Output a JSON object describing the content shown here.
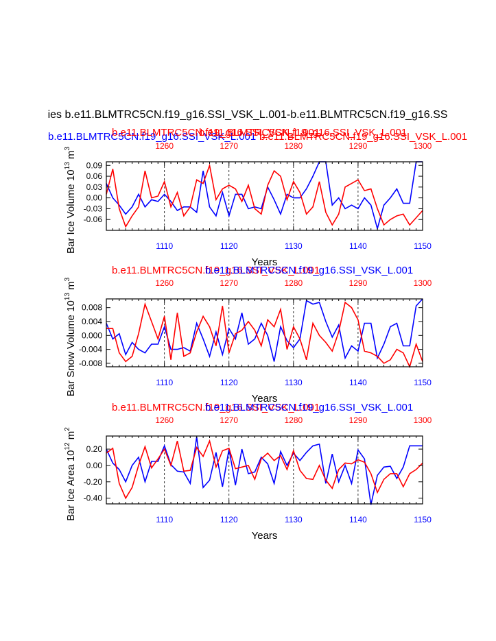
{
  "figure": {
    "main_title": "ies b.e11.BLMTRC5CN.f19_g16.SSI_VSK_L.001-b.e11.BLMTRC5CN.f19_g16.SS",
    "top_line_blue": "b.e11.BLMTRC5CN.f19_g16.SSI_VSK_L.001",
    "top_line_red": "b.e11.BLMTRC5CN.f19_g16.SSI_VSK_L.001",
    "colors": {
      "series_a": "#0000ff",
      "series_b": "#ff0000",
      "text": "#000000"
    }
  },
  "chart_data": [
    {
      "type": "line",
      "title_red": "b.e11.BLMTRC5CN.f19_g16.SSI_VSK_L.001",
      "title_blue": "b.e11.BLMTRC5CN.f19_g16.SSI_VSK_L.001",
      "ylabel": "Bar Ice Volume 10",
      "ylabel_exp": "13",
      "ylabel_unit": "m",
      "ylabel_unit_exp": "3",
      "xlabel": "Years",
      "ylim": [
        -0.09,
        0.1
      ],
      "yticks": [
        -0.06,
        -0.03,
        0.0,
        0.03,
        0.06,
        0.09
      ],
      "yticklabels": [
        "-0.06",
        "-0.03",
        "0.00",
        "0.03",
        "0.06",
        "0.09"
      ],
      "x_bottom": {
        "range": [
          1101,
          1150
        ],
        "ticks": [
          1110,
          1120,
          1130,
          1140,
          1150
        ]
      },
      "x_top": {
        "range": [
          1251,
          1300
        ],
        "ticks": [
          1260,
          1270,
          1280,
          1290,
          1300
        ]
      },
      "series": [
        {
          "name": "b.e11.BLMTRC5CN.f19_g16.SSI_VSK_L.001 (1101-1150)",
          "color": "#0000ff",
          "values": [
            0.04,
            0.0,
            -0.02,
            -0.045,
            -0.025,
            0.01,
            -0.025,
            -0.005,
            -0.01,
            0.01,
            -0.01,
            -0.035,
            -0.025,
            -0.025,
            -0.04,
            0.075,
            -0.025,
            -0.05,
            0.015,
            -0.05,
            0.01,
            0.01,
            -0.03,
            -0.025,
            -0.03,
            0.03,
            -0.005,
            -0.045,
            0.01,
            0.0,
            0.0,
            0.025,
            0.06,
            0.1,
            0.1,
            -0.02,
            0.0,
            -0.03,
            -0.02,
            -0.03,
            0.0,
            -0.02,
            -0.085,
            -0.02,
            0.0,
            0.025,
            -0.015,
            -0.015,
            0.1,
            0.1
          ]
        },
        {
          "name": "b.e11.BLMTRC5CN.f19_g16.SSI_VSK_L.001 (1251-1300)",
          "color": "#ff0000",
          "values": [
            0.01,
            0.08,
            -0.03,
            -0.08,
            -0.05,
            -0.025,
            0.075,
            0.0,
            0.005,
            0.045,
            -0.025,
            0.015,
            -0.05,
            -0.025,
            0.05,
            0.04,
            0.09,
            -0.005,
            0.025,
            0.035,
            0.025,
            -0.01,
            0.035,
            -0.03,
            -0.045,
            0.035,
            0.075,
            0.06,
            -0.005,
            0.045,
            0.015,
            -0.045,
            -0.025,
            0.045,
            -0.04,
            -0.075,
            -0.045,
            0.03,
            0.04,
            0.05,
            0.02,
            0.025,
            -0.03,
            -0.075,
            -0.06,
            -0.05,
            -0.045,
            -0.075,
            -0.055,
            -0.035
          ]
        }
      ]
    },
    {
      "type": "line",
      "title_red": "b.e11.BLMTRC5CN.f19_g16.SSI_VSK_L.001",
      "title_blue": "b.e11.BLMTRC5CN.f19_g16.SSI_VSK_L.001",
      "ylabel": "Bar Snow Volume 10",
      "ylabel_exp": "13",
      "ylabel_unit": "m",
      "ylabel_unit_exp": "3",
      "xlabel": "Years",
      "ylim": [
        -0.009,
        0.0105
      ],
      "yticks": [
        -0.008,
        -0.004,
        0.0,
        0.004,
        0.008
      ],
      "yticklabels": [
        "-0.008",
        "-0.004",
        "0.000",
        "0.004",
        "0.008"
      ],
      "x_bottom": {
        "range": [
          1101,
          1150
        ],
        "ticks": [
          1110,
          1120,
          1130,
          1140,
          1150
        ]
      },
      "x_top": {
        "range": [
          1251,
          1300
        ],
        "ticks": [
          1260,
          1270,
          1280,
          1290,
          1300
        ]
      },
      "series": [
        {
          "name": "b.e11.BLMTRC5CN.f19_g16.SSI_VSK_L.001 (1101-1150)",
          "color": "#0000ff",
          "values": [
            0.0035,
            -0.001,
            0.0005,
            -0.0055,
            -0.002,
            -0.004,
            -0.005,
            -0.0025,
            -0.0025,
            0.0025,
            -0.004,
            -0.004,
            -0.0035,
            -0.0045,
            0.0035,
            -0.001,
            -0.006,
            0.001,
            -0.0055,
            0.002,
            -0.001,
            0.0065,
            -0.0025,
            -0.001,
            0.0035,
            0.0,
            -0.0075,
            0.0025,
            -0.0015,
            -0.0035,
            -0.001,
            0.01,
            0.009,
            0.0095,
            0.004,
            -0.0005,
            0.003,
            -0.0065,
            -0.003,
            -0.0045,
            0.0035,
            0.0035,
            -0.0065,
            -0.0025,
            0.0025,
            0.0035,
            -0.003,
            -0.003,
            0.0085,
            0.0105
          ]
        },
        {
          "name": "b.e11.BLMTRC5CN.f19_g16.SSI_VSK_L.001 (1251-1300)",
          "color": "#ff0000",
          "values": [
            0.002,
            0.002,
            -0.005,
            -0.0075,
            -0.006,
            0.0005,
            0.009,
            0.004,
            -0.001,
            0.0055,
            -0.007,
            0.0065,
            -0.006,
            -0.005,
            0.001,
            0.0055,
            0.0025,
            -0.003,
            0.0085,
            -0.005,
            0.0005,
            0.0015,
            0.004,
            0.0015,
            -0.003,
            0.0045,
            0.0025,
            0.0075,
            -0.004,
            0.0025,
            -0.001,
            -0.007,
            0.0035,
            0.0,
            -0.002,
            -0.0045,
            0.001,
            0.0095,
            0.008,
            0.0045,
            -0.0045,
            -0.005,
            -0.006,
            -0.008,
            -0.007,
            -0.004,
            -0.005,
            -0.009,
            -0.0025,
            -0.0075
          ]
        }
      ]
    },
    {
      "type": "line",
      "title_red": "b.e11.BLMTRC5CN.f19_g16.SSI_VSK_L.001",
      "title_blue": "b.e11.BLMTRC5CN.f19_g16.SSI_VSK_L.001",
      "ylabel": "Bar Ice Area 10",
      "ylabel_exp": "12",
      "ylabel_unit": "m",
      "ylabel_unit_exp": "2",
      "xlabel": "Years",
      "ylim": [
        -0.47,
        0.36
      ],
      "yticks": [
        -0.4,
        -0.2,
        0.0,
        0.2
      ],
      "yticklabels": [
        "-0.40",
        "-0.20",
        "0.00",
        "0.20"
      ],
      "x_bottom": {
        "range": [
          1101,
          1150
        ],
        "ticks": [
          1110,
          1120,
          1130,
          1140,
          1150
        ]
      },
      "x_top": {
        "range": [
          1251,
          1300
        ],
        "ticks": [
          1260,
          1270,
          1280,
          1290,
          1300
        ]
      },
      "series": [
        {
          "name": "b.e11.BLMTRC5CN.f19_g16.SSI_VSK_L.001 (1101-1150)",
          "color": "#0000ff",
          "values": [
            0.2,
            0.03,
            -0.05,
            -0.2,
            0.0,
            0.1,
            -0.2,
            0.05,
            0.05,
            0.24,
            0.01,
            -0.07,
            -0.08,
            -0.22,
            0.35,
            -0.27,
            -0.18,
            0.16,
            -0.26,
            0.2,
            -0.24,
            0.2,
            -0.1,
            -0.08,
            0.1,
            0.02,
            -0.22,
            0.17,
            0.0,
            0.15,
            0.06,
            0.16,
            0.24,
            0.26,
            -0.22,
            0.14,
            -0.2,
            0.0,
            -0.22,
            0.19,
            0.08,
            -0.48,
            -0.12,
            -0.02,
            -0.01,
            -0.16,
            -0.02,
            0.24,
            0.24,
            0.24
          ]
        },
        {
          "name": "b.e11.BLMTRC5CN.f19_g16.SSI_VSK_L.001 (1251-1300)",
          "color": "#ff0000",
          "values": [
            0.15,
            0.21,
            -0.22,
            -0.4,
            -0.27,
            0.0,
            0.23,
            -0.03,
            0.08,
            0.2,
            0.0,
            0.3,
            -0.07,
            -0.06,
            0.22,
            0.11,
            0.3,
            -0.02,
            0.18,
            0.21,
            -0.04,
            -0.02,
            0.0,
            -0.17,
            0.08,
            0.15,
            0.06,
            0.12,
            -0.05,
            0.18,
            -0.06,
            -0.16,
            -0.17,
            0.0,
            -0.18,
            -0.28,
            -0.05,
            0.03,
            0.02,
            0.07,
            0.04,
            -0.1,
            -0.33,
            -0.17,
            -0.1,
            -0.1,
            -0.26,
            -0.1,
            -0.05,
            0.03
          ]
        }
      ]
    }
  ]
}
